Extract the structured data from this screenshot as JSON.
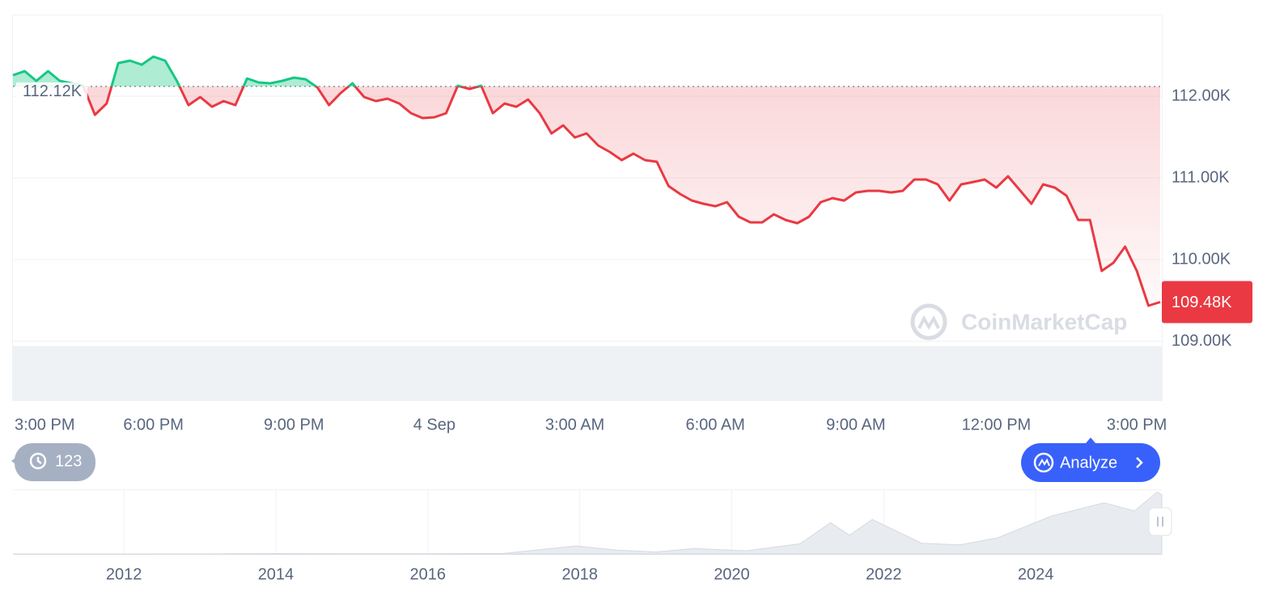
{
  "chart_data": [
    {
      "type": "line",
      "categories": [
        "3:00 PM",
        null,
        null,
        null,
        null,
        null,
        null,
        null,
        null,
        null,
        null,
        null,
        "6:00 PM",
        null,
        null,
        null,
        null,
        null,
        null,
        null,
        null,
        null,
        null,
        null,
        "9:00 PM",
        null,
        null,
        null,
        null,
        null,
        null,
        null,
        null,
        null,
        null,
        null,
        "4 Sep",
        null,
        null,
        null,
        null,
        null,
        null,
        null,
        null,
        null,
        null,
        null,
        "3:00 AM",
        null,
        null,
        null,
        null,
        null,
        null,
        null,
        null,
        null,
        null,
        null,
        "6:00 AM",
        null,
        null,
        null,
        null,
        null,
        null,
        null,
        null,
        null,
        null,
        null,
        "9:00 AM",
        null,
        null,
        null,
        null,
        null,
        null,
        null,
        null,
        null,
        null,
        null,
        "12:00 PM",
        null,
        null,
        null,
        null,
        null,
        null,
        null,
        null,
        null,
        null,
        null,
        "3:00 PM",
        null,
        null
      ],
      "values": [
        112257,
        112307,
        112188,
        112307,
        112188,
        112158,
        112129,
        111772,
        111911,
        112406,
        112436,
        112386,
        112485,
        112436,
        112188,
        111891,
        111990,
        111871,
        111941,
        111891,
        112218,
        112168,
        112158,
        112188,
        112228,
        112208,
        112109,
        111891,
        112040,
        112158,
        111990,
        111941,
        111970,
        111911,
        111792,
        111733,
        111743,
        111792,
        112129,
        112089,
        112129,
        111792,
        111911,
        111871,
        111960,
        111792,
        111545,
        111644,
        111495,
        111545,
        111396,
        111317,
        111218,
        111297,
        111218,
        111198,
        110901,
        110802,
        110723,
        110683,
        110653,
        110703,
        110525,
        110455,
        110455,
        110554,
        110485,
        110446,
        110525,
        110703,
        110752,
        110723,
        110822,
        110842,
        110842,
        110822,
        110842,
        110980,
        110980,
        110921,
        110723,
        110921,
        110950,
        110980,
        110881,
        111020,
        110851,
        110683,
        110921,
        110881,
        110782,
        110485,
        110485,
        109861,
        109960,
        110158,
        109861,
        109436,
        109480
      ],
      "up_color": "#16c784",
      "down_color": "#ea3943",
      "ylim": [
        109000,
        113000
      ],
      "yticks": [
        {
          "value": 109000,
          "label": "109.00K"
        },
        {
          "value": 110000,
          "label": "110.00K"
        },
        {
          "value": 111000,
          "label": "111.00K"
        },
        {
          "value": 112000,
          "label": "112.00K"
        }
      ],
      "grid": true,
      "baseline": {
        "value": 112120,
        "label": "112.12K"
      },
      "last_price": {
        "value": 109480,
        "label": "109.48K"
      }
    },
    {
      "type": "area",
      "x": [
        2010.54,
        2013,
        2014,
        2015,
        2016,
        2017,
        2017.95,
        2018.5,
        2019,
        2019.5,
        2020.2,
        2020.9,
        2021.3,
        2021.55,
        2021.85,
        2022.5,
        2023,
        2023.5,
        2024.2,
        2024.9,
        2025.3,
        2025.6,
        2025.66
      ],
      "values": [
        0,
        100,
        800,
        300,
        400,
        1000,
        15000,
        7000,
        3700,
        10000,
        6000,
        19000,
        58000,
        35000,
        64000,
        20000,
        17000,
        30000,
        70000,
        95000,
        80000,
        115000,
        110000
      ],
      "color": "#e8ebf0",
      "xlim": [
        2010.54,
        2025.66
      ],
      "ylim": [
        0,
        120000
      ],
      "xticks": [
        2012,
        2014,
        2016,
        2018,
        2020,
        2022,
        2024
      ]
    }
  ],
  "ui": {
    "history_count": 123,
    "analyze_button": "Analyze",
    "watermark": "CoinMarketCap"
  }
}
